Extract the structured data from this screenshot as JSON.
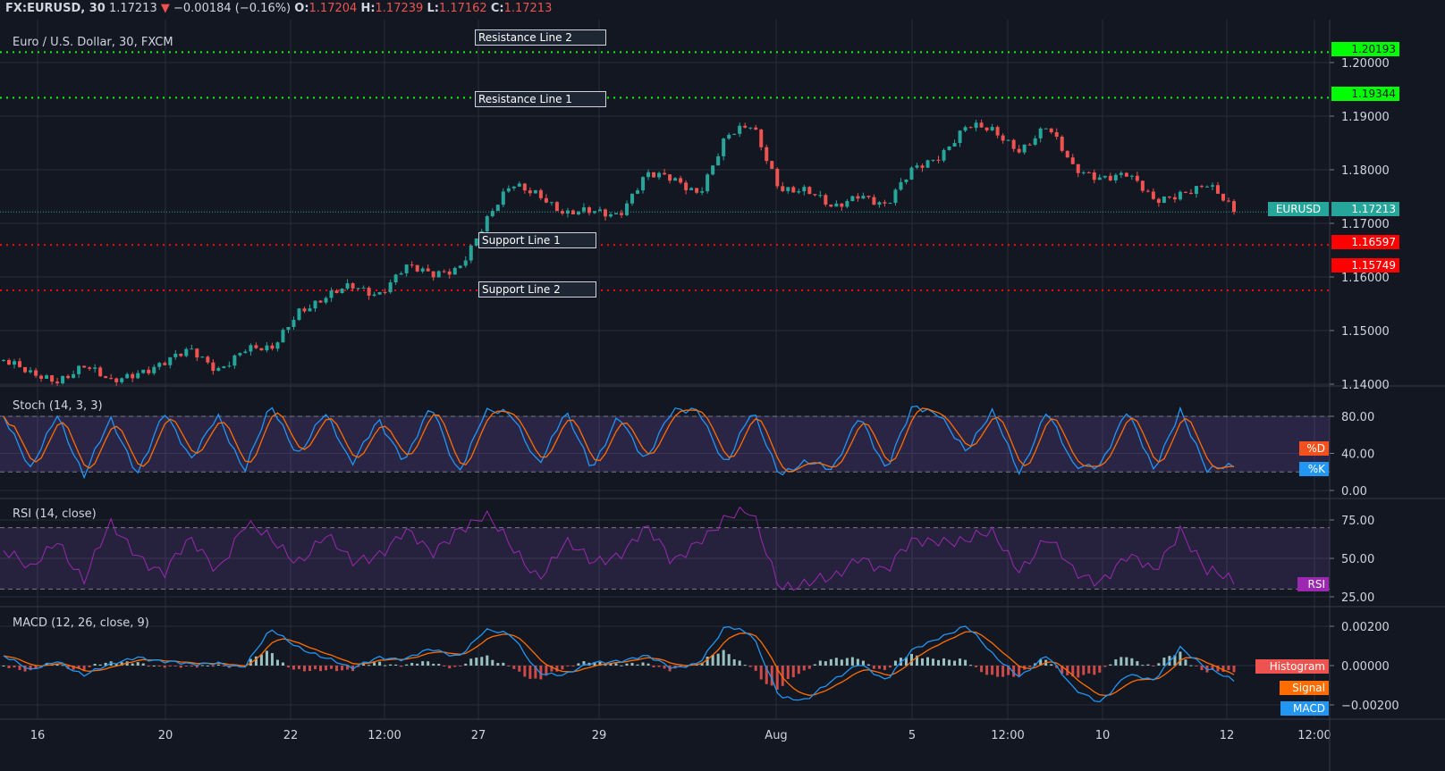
{
  "header": {
    "symbol": "FX:EURUSD, 30",
    "last": "1.17213",
    "change": "−0.00184 (−0.16%)",
    "o_label": "O:",
    "o": "1.17204",
    "h_label": "H:",
    "h": "1.17239",
    "l_label": "L:",
    "l": "1.17162",
    "c_label": "C:",
    "c": "1.17213",
    "direction_icon": "triangle-down"
  },
  "colors": {
    "background": "#131722",
    "up": "#26a69a",
    "down": "#ef5350",
    "resistance": "#00ff00",
    "support": "#ff0000",
    "k": "#2196f3",
    "d": "#ff6d00",
    "rsi": "#9c27b0",
    "band": "#7e57c2"
  },
  "chart_data": [
    {
      "type": "candlestick",
      "title": "Euro / U.S. Dollar, 30, FXCM",
      "ylim": [
        1.14,
        1.205
      ],
      "yticks": [
        "1.20000",
        "1.19000",
        "1.18000",
        "1.17000",
        "1.16000",
        "1.15000",
        "1.14000"
      ],
      "xticks": [
        "16",
        "20",
        "22",
        "12:00",
        "27",
        "29",
        "Aug",
        "5",
        "12:00",
        "10",
        "12",
        "12:00"
      ],
      "close_path": [
        1.1445,
        1.1415,
        1.141,
        1.1435,
        1.14,
        1.1425,
        1.144,
        1.146,
        1.143,
        1.1465,
        1.146,
        1.154,
        1.156,
        1.158,
        1.157,
        1.162,
        1.16,
        1.162,
        1.17,
        1.177,
        1.176,
        1.1715,
        1.172,
        1.172,
        1.179,
        1.178,
        1.176,
        1.186,
        1.188,
        1.177,
        1.176,
        1.1725,
        1.176,
        1.173,
        1.18,
        1.183,
        1.188,
        1.187,
        1.184,
        1.188,
        1.18,
        1.179,
        1.179,
        1.174,
        1.176,
        1.177,
        1.17213
      ],
      "last_price": {
        "label": "EURUSD",
        "value": "1.17213"
      },
      "levels": [
        {
          "name": "Resistance Line 2",
          "value": 1.20193,
          "text": "1.20193",
          "kind": "resistance"
        },
        {
          "name": "Resistance Line 1",
          "value": 1.19344,
          "text": "1.19344",
          "kind": "resistance"
        },
        {
          "name": "Support Line 1",
          "value": 1.16597,
          "text": "1.16597",
          "kind": "support"
        },
        {
          "name": "Support Line 2",
          "value": 1.15749,
          "text": "1.15749",
          "kind": "support"
        }
      ]
    },
    {
      "type": "line",
      "title": "Stoch (14, 3, 3)",
      "ylim": [
        0,
        100
      ],
      "yticks": [
        "80.00",
        "40.00",
        "0.00"
      ],
      "bands": [
        20,
        80
      ],
      "series": [
        {
          "name": "%K",
          "values": [
            80,
            20,
            85,
            15,
            75,
            20,
            85,
            30,
            85,
            20,
            90,
            40,
            85,
            25,
            80,
            30,
            90,
            20,
            85,
            80,
            30,
            85,
            20,
            85,
            30,
            85,
            90,
            25,
            85,
            20,
            30,
            20,
            85,
            20,
            90,
            85,
            40,
            85,
            20,
            85,
            25,
            30,
            85,
            20,
            90,
            20,
            25
          ]
        },
        {
          "name": "%D"
        }
      ]
    },
    {
      "type": "line",
      "title": "RSI (14, close)",
      "ylim": [
        20,
        85
      ],
      "yticks": [
        "75.00",
        "50.00",
        "25.00"
      ],
      "bands": [
        30,
        70
      ],
      "series": [
        {
          "name": "RSI",
          "values": [
            55,
            40,
            65,
            35,
            70,
            55,
            40,
            60,
            45,
            72,
            60,
            50,
            65,
            45,
            55,
            68,
            50,
            72,
            78,
            55,
            40,
            60,
            45,
            55,
            70,
            45,
            65,
            75,
            78,
            35,
            32,
            35,
            55,
            40,
            60,
            65,
            60,
            65,
            45,
            62,
            40,
            38,
            50,
            40,
            72,
            40,
            33
          ]
        }
      ]
    },
    {
      "type": "line",
      "title": "MACD (12, 26, close, 9)",
      "ylim": [
        -0.0025,
        0.0026
      ],
      "yticks": [
        "0.00200",
        "0.00000",
        "−0.00200"
      ],
      "series": [
        {
          "name": "MACD",
          "values": [
            0.0005,
            -0.0003,
            0.0003,
            -0.0005,
            0,
            0.0005,
            0.0002,
            0,
            0.0002,
            -0.0001,
            0.0018,
            0.001,
            0.0004,
            -0.0002,
            0.0005,
            0.0003,
            0.0008,
            0.0005,
            0.0018,
            0.0015,
            -0.0003,
            -0.0005,
            0.0001,
            0.0003,
            0.0005,
            -0.0002,
            0.0002,
            0.002,
            0.0015,
            -0.0015,
            -0.0018,
            -0.0008,
            0.0002,
            -0.0008,
            0.0008,
            0.0015,
            0.002,
            0.0005,
            -0.0005,
            0.0005,
            -0.0012,
            -0.0018,
            -0.0005,
            -0.0008,
            0.001,
            -0.0002,
            -0.0008
          ]
        },
        {
          "name": "Signal"
        },
        {
          "name": "Histogram"
        }
      ]
    }
  ]
}
